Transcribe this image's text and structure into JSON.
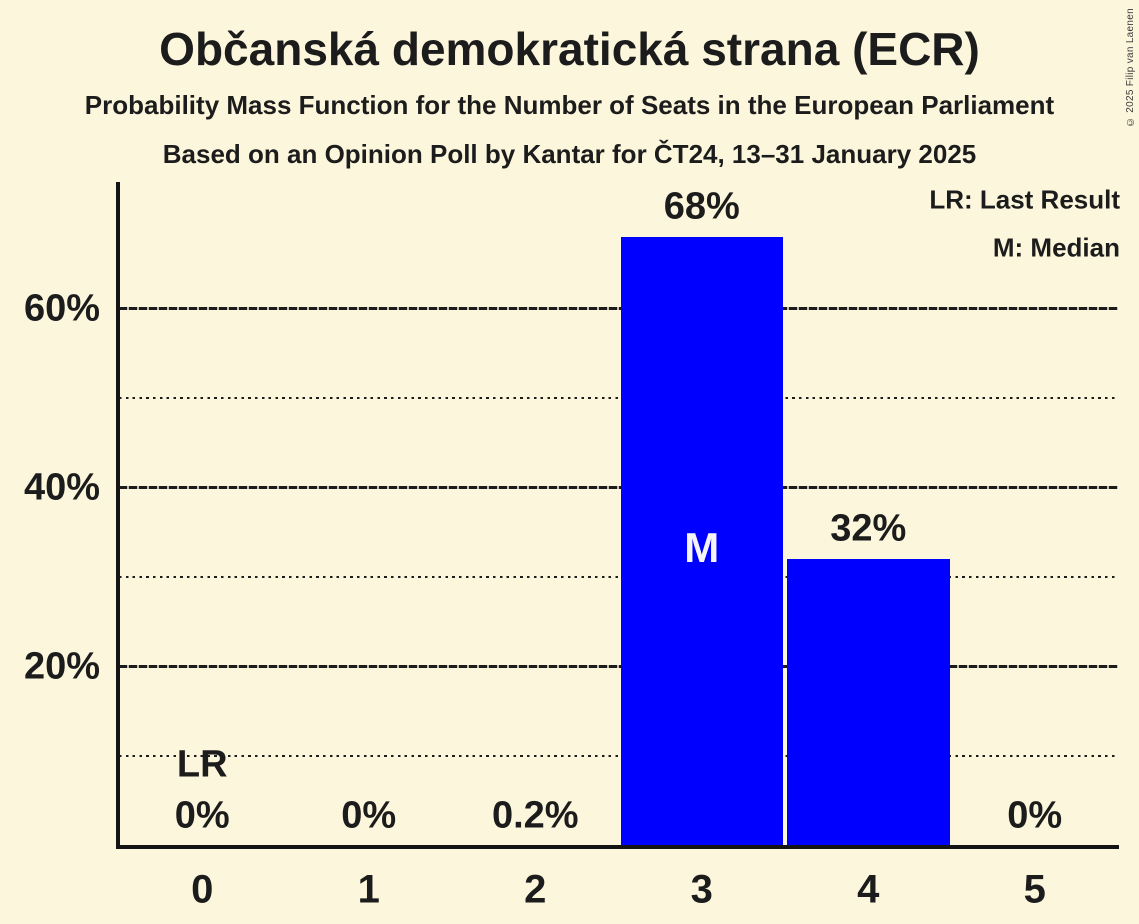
{
  "header": {
    "title": "Občanská demokratická strana (ECR)",
    "subtitle1": "Probability Mass Function for the Number of Seats in the European Parliament",
    "subtitle2": "Based on an Opinion Poll by Kantar for ČT24, 13–31 January 2025",
    "copyright": "© 2025 Filip van Laenen"
  },
  "legend": {
    "lr": "LR: Last Result",
    "m": "M: Median"
  },
  "colors": {
    "background": "#FCF7DC",
    "text": "#1C1C1C",
    "bar": "#0000FF",
    "median_label": "#F5F5F5",
    "gridline": "#1C1C1C",
    "copyright_text": "#3A3A3A"
  },
  "chart_data": {
    "type": "bar",
    "title": "Občanská demokratická strana (ECR)",
    "subtitle": "Probability Mass Function for the Number of Seats in the European Parliament",
    "source_line": "Based on an Opinion Poll by Kantar for ČT24, 13–31 January 2025",
    "categories": [
      "0",
      "1",
      "2",
      "3",
      "4",
      "5"
    ],
    "values": [
      0,
      0,
      0.2,
      68,
      32,
      0
    ],
    "value_labels": [
      "0%",
      "0%",
      "0.2%",
      "68%",
      "32%",
      "0%"
    ],
    "xlabel": "",
    "ylabel": "",
    "ylim": [
      0,
      74
    ],
    "yticks": [
      {
        "value": 20,
        "label": "20%"
      },
      {
        "value": 40,
        "label": "40%"
      },
      {
        "value": 60,
        "label": "60%"
      }
    ],
    "gridlines": {
      "solid": [
        20,
        40,
        60
      ],
      "dotted": [
        10,
        30,
        50
      ]
    },
    "grid": true,
    "legend_position": "top-right",
    "legend_entries": [
      "LR: Last Result",
      "M: Median"
    ],
    "annotations": [
      {
        "text": "LR",
        "meaning": "Last Result",
        "category_index": 0,
        "y_percent": 9,
        "style": "dark"
      },
      {
        "text": "M",
        "meaning": "Median",
        "category_index": 3,
        "y_percent": 33.2,
        "style": "light"
      }
    ]
  }
}
